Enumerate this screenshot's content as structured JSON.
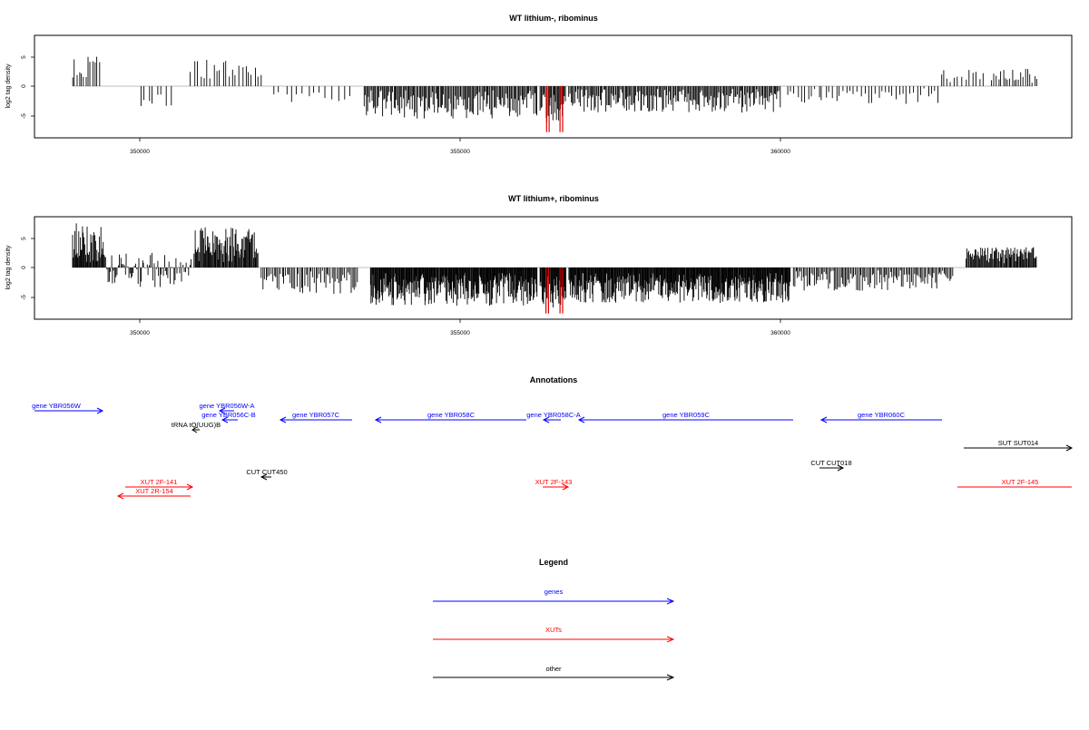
{
  "chart_data": [
    {
      "type": "bar",
      "title": "WT lithium-, ribominus",
      "ylabel": "log2 tag density",
      "xlabel": "",
      "xlim": [
        348200,
        364400
      ],
      "ylim": [
        -8,
        8
      ],
      "x_ticks": [
        350000,
        355000,
        360000
      ],
      "y_ticks": [
        5,
        0,
        -5
      ],
      "bar_color": "#000000",
      "highlight_color": "#e00000",
      "segments": [
        {
          "from": 348950,
          "to": 349400,
          "step": 35,
          "min": 1.5,
          "max": 5.0
        },
        {
          "from": 350000,
          "to": 350500,
          "step": 70,
          "min": -3.5,
          "max": -1
        },
        {
          "from": 350800,
          "to": 351900,
          "step": 50,
          "min": 1.5,
          "max": 4.5
        },
        {
          "from": 352100,
          "to": 353300,
          "step": 90,
          "min": -3,
          "max": -1
        },
        {
          "from": 353500,
          "to": 356200,
          "step": 18,
          "min": -5.5,
          "max": -1.5
        },
        {
          "from": 356250,
          "to": 356650,
          "step": 15,
          "min": -6.5,
          "max": -2.5
        },
        {
          "from": 356700,
          "to": 360000,
          "step": 18,
          "min": -4.5,
          "max": -1
        },
        {
          "from": 360100,
          "to": 362500,
          "step": 55,
          "min": -3,
          "max": -0.8
        },
        {
          "from": 362500,
          "to": 363200,
          "step": 55,
          "min": 1,
          "max": 3
        },
        {
          "from": 363300,
          "to": 364000,
          "step": 35,
          "min": 1,
          "max": 3
        }
      ],
      "highlights": [
        356350,
        356390,
        356560,
        356600
      ],
      "highlight_values": -7.8
    },
    {
      "type": "bar",
      "title": "WT lithium+, ribominus",
      "ylabel": "log2 tag density",
      "xlabel": "",
      "xlim": [
        348200,
        364400
      ],
      "ylim": [
        -8,
        8
      ],
      "x_ticks": [
        350000,
        355000,
        360000
      ],
      "y_ticks": [
        5,
        0,
        -5
      ],
      "bar_color": "#000000",
      "highlight_color": "#e00000",
      "segments": [
        {
          "from": 348950,
          "to": 349450,
          "step": 12,
          "min": 2,
          "max": 7.5
        },
        {
          "from": 349450,
          "to": 350800,
          "step": 18,
          "min": -3.5,
          "max": 2.5
        },
        {
          "from": 350850,
          "to": 351850,
          "step": 12,
          "min": 2,
          "max": 7
        },
        {
          "from": 351900,
          "to": 353400,
          "step": 25,
          "min": -4.5,
          "max": -1
        },
        {
          "from": 353600,
          "to": 356200,
          "step": 10,
          "min": -6.5,
          "max": -2
        },
        {
          "from": 356250,
          "to": 356650,
          "step": 10,
          "min": -7,
          "max": -3
        },
        {
          "from": 356700,
          "to": 360150,
          "step": 10,
          "min": -6,
          "max": -2
        },
        {
          "from": 360200,
          "to": 362700,
          "step": 22,
          "min": -4,
          "max": -1
        },
        {
          "from": 362900,
          "to": 364000,
          "step": 14,
          "min": 1.5,
          "max": 3.5
        }
      ],
      "highlights": [
        356340,
        356380,
        356560,
        356600
      ],
      "highlight_values": -7.8
    }
  ],
  "annotations": {
    "title": "Annotations",
    "genes_color": "#0000ff",
    "xuts_color": "#ff0000",
    "other_color": "#000000",
    "items": [
      {
        "label": "gene YBR056W",
        "kind": "gene",
        "dir": "right"
      },
      {
        "label": "gene YBR056W-A",
        "kind": "gene",
        "dir": "left"
      },
      {
        "label": "gene YBR056C-B",
        "kind": "gene",
        "dir": "left"
      },
      {
        "label": "tRNA tQ(UUG)B",
        "kind": "other",
        "dir": "left"
      },
      {
        "label": "gene YBR057C",
        "kind": "gene",
        "dir": "left"
      },
      {
        "label": "gene YBR058C",
        "kind": "gene",
        "dir": "left"
      },
      {
        "label": "gene YBR058C-A",
        "kind": "gene",
        "dir": "left"
      },
      {
        "label": "gene YBR059C",
        "kind": "gene",
        "dir": "left"
      },
      {
        "label": "gene YBR060C",
        "kind": "gene",
        "dir": "left"
      },
      {
        "label": "SUT SUT014",
        "kind": "other",
        "dir": "right"
      },
      {
        "label": "CUT CUT450",
        "kind": "other",
        "dir": "left"
      },
      {
        "label": "CUT CUT018",
        "kind": "other",
        "dir": "right"
      },
      {
        "label": "XUT 2F-141",
        "kind": "xut",
        "dir": "right"
      },
      {
        "label": "XUT 2R-154",
        "kind": "xut",
        "dir": "left"
      },
      {
        "label": "XUT 2F-143",
        "kind": "xut",
        "dir": "right"
      },
      {
        "label": "XUT 2F-145",
        "kind": "xut",
        "dir": "right"
      }
    ]
  },
  "legend": {
    "title": "Legend",
    "items": [
      {
        "label": "genes",
        "color": "#0000ff"
      },
      {
        "label": "XUTs",
        "color": "#ff0000"
      },
      {
        "label": "other",
        "color": "#000000"
      }
    ]
  }
}
